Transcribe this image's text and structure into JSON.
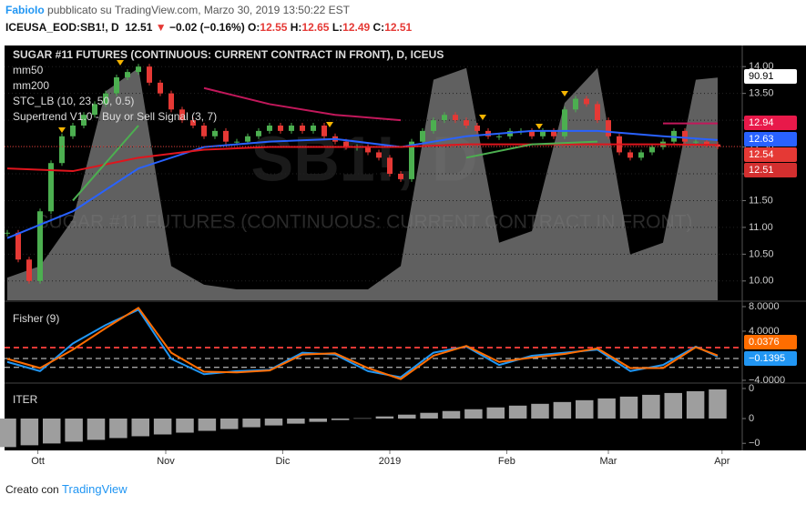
{
  "header": {
    "author": "FabioIo",
    "published": "pubblicato su TradingView.com, Marzo 30, 2019 13:50:22 EST",
    "symbol": "ICEUSA_EOD:SB1!, D",
    "last": "12.51",
    "arrow": "▼",
    "change": "−0.02 (−0.16%)",
    "ohlc": [
      {
        "label": "O:",
        "value": "12.55"
      },
      {
        "label": "H:",
        "value": "12.65"
      },
      {
        "label": "L:",
        "value": "12.49"
      },
      {
        "label": "C:",
        "value": "12.51"
      }
    ]
  },
  "footer": {
    "text": "Creato con",
    "brand": "TradingView"
  },
  "watermark": [
    "SB1!, D",
    "SUGAR #11 FUTURES (CONTINUOUS: CURRENT CONTRACT IN FRONT)"
  ],
  "chart_data": [
    {
      "type": "candlestick",
      "title": "SUGAR #11 FUTURES (CONTINUOUS: CURRENT CONTRACT IN FRONT), D, ICEUS",
      "xlim": [
        -0.25,
        67.25
      ],
      "xticks": [
        {
          "value": 2.8,
          "label": "Ott"
        },
        {
          "value": 14.5,
          "label": "Nov"
        },
        {
          "value": 25.2,
          "label": "Dic"
        },
        {
          "value": 35,
          "label": "2019"
        },
        {
          "value": 45.7,
          "label": "Feb"
        },
        {
          "value": 55,
          "label": "Mar"
        },
        {
          "value": 65.4,
          "label": "Apr"
        }
      ],
      "ylim": [
        9.64,
        14.36
      ],
      "yticks": [
        {
          "value": 10,
          "label": "10.00"
        },
        {
          "value": 10.5,
          "label": "10.50"
        },
        {
          "value": 11,
          "label": "11.00"
        },
        {
          "value": 11.5,
          "label": "11.50"
        },
        {
          "value": 12,
          "label": "12.00"
        },
        {
          "value": 12.5,
          "label": "12.50"
        },
        {
          "value": 13,
          "label": "13.00"
        },
        {
          "value": 13.5,
          "label": "13.50"
        },
        {
          "value": 14,
          "label": "14.00"
        }
      ],
      "y2lim": [
        -4.7,
        103.9
      ],
      "grid": true,
      "up_color": "#4caf50",
      "down_color": "#e53935",
      "series": [
        {
          "name": "close",
          "values": [
            10.9,
            10.4,
            10.0,
            11.3,
            12.2,
            12.7,
            12.9,
            13.1,
            13.3,
            13.5,
            13.8,
            13.9,
            14.0,
            13.7,
            13.5,
            13.2,
            13.0,
            12.9,
            12.7,
            12.8,
            12.6,
            12.6,
            12.7,
            12.8,
            12.9,
            12.8,
            12.9,
            12.8,
            12.9,
            12.7,
            12.6,
            12.5,
            12.5,
            12.4,
            12.3,
            12.0,
            11.9,
            12.6,
            12.8,
            13.0,
            13.1,
            13.0,
            12.9,
            12.8,
            12.7,
            12.7,
            12.8,
            12.8,
            12.7,
            12.8,
            12.7,
            13.2,
            13.4,
            13.3,
            13.0,
            12.7,
            12.4,
            12.3,
            12.4,
            12.5,
            12.6,
            12.8,
            12.6,
            12.6,
            12.55,
            12.51
          ]
        },
        {
          "name": "mm50",
          "type": "line",
          "color": "#2962ff",
          "x": [
            0,
            6,
            12,
            18,
            24,
            30,
            36,
            42,
            48,
            54,
            60,
            65
          ],
          "values": [
            10.8,
            11.3,
            12.1,
            12.5,
            12.6,
            12.65,
            12.5,
            12.7,
            12.8,
            12.8,
            12.7,
            12.63
          ]
        },
        {
          "name": "mm200",
          "type": "line",
          "color": "#e0151d",
          "x": [
            0,
            6,
            12,
            18,
            24,
            30,
            36,
            42,
            48,
            54,
            60,
            65
          ],
          "values": [
            12.1,
            12.05,
            12.3,
            12.45,
            12.5,
            12.5,
            12.5,
            12.55,
            12.55,
            12.55,
            12.55,
            12.54
          ]
        },
        {
          "name": "STC_LB (10, 23, 50, 0.5)",
          "type": "area",
          "axis": "y2",
          "color": "#808080",
          "x": [
            0,
            3,
            6,
            9,
            12,
            15,
            18,
            21,
            24,
            27,
            30,
            33,
            36,
            39,
            42,
            45,
            48,
            51,
            54,
            57,
            60,
            63,
            65
          ],
          "values": [
            5,
            10,
            30,
            85,
            95,
            10,
            2,
            0,
            0,
            0,
            0,
            0,
            10,
            90,
            95,
            20,
            25,
            80,
            95,
            15,
            20,
            90,
            90.91
          ]
        },
        {
          "name": "Supertrend V1.0 - Buy or Sell Signal (3, 7)",
          "type": "trend",
          "x": [
            0,
            6,
            12,
            18,
            24,
            30,
            36,
            42,
            48,
            54,
            60,
            65
          ],
          "values": [
            11.5,
            11.5,
            12.9,
            13.6,
            13.3,
            13.1,
            13.0,
            12.3,
            12.55,
            12.6,
            12.94,
            12.94
          ],
          "colors": [
            "#c2185b",
            "#4caf50",
            "#4caf50",
            "#c2185b",
            "#c2185b",
            "#c2185b",
            "#c2185b",
            "#4caf50",
            "#4caf50",
            "#4caf50",
            "#c2185b",
            "#c2185b"
          ]
        }
      ],
      "last_labels": [
        {
          "text": "90.91",
          "color": "#ffffff",
          "text_color": "#000000"
        },
        {
          "text": "12.94",
          "color": "#e8194a",
          "text_color": "#ffffff"
        },
        {
          "text": "12.63",
          "color": "#2962ff",
          "text_color": "#ffffff"
        },
        {
          "text": "12.54",
          "color": "#e53935",
          "text_color": "#ffffff"
        },
        {
          "text": "12.51",
          "color": "#d32f2f",
          "text_color": "#ffffff"
        }
      ]
    },
    {
      "type": "line",
      "title": "Fisher (9)",
      "xlim": [
        -0.25,
        67.25
      ],
      "ylim": [
        -4.3,
        8.59
      ],
      "yticks": [
        {
          "value": 8,
          "label": "8.0000"
        },
        {
          "value": 4,
          "label": "4.0000"
        },
        {
          "value": -4,
          "label": "−4.0000"
        }
      ],
      "levels": [
        {
          "value": 1.33,
          "color": "#e53935"
        },
        {
          "value": -0.44,
          "color": "#dddddd"
        },
        {
          "value": -1.9,
          "color": "#dddddd"
        }
      ],
      "series": [
        {
          "color": "#2196f3",
          "x": [
            0,
            3,
            6,
            9,
            12,
            15,
            18,
            21,
            24,
            27,
            30,
            33,
            36,
            39,
            42,
            45,
            48,
            51,
            54,
            57,
            60,
            63,
            65
          ],
          "values": [
            -1,
            -2.5,
            2,
            5,
            7.5,
            -0.5,
            -3,
            -2.5,
            -2.3,
            0.5,
            0.2,
            -2.5,
            -3.5,
            0.5,
            1.5,
            -1.5,
            0,
            0.5,
            1,
            -2.5,
            -1.5,
            1.5,
            -0.1395
          ]
        },
        {
          "color": "#ff6d00",
          "x": [
            0,
            3,
            6,
            9,
            12,
            15,
            18,
            21,
            24,
            27,
            30,
            33,
            36,
            39,
            42,
            45,
            48,
            51,
            54,
            57,
            60,
            63,
            65
          ],
          "values": [
            -0.5,
            -2,
            1,
            4.5,
            7.8,
            0.5,
            -2.6,
            -2.7,
            -2.4,
            0.2,
            0.4,
            -2,
            -3.8,
            0,
            1.6,
            -1,
            -0.3,
            0.3,
            1.2,
            -2,
            -2,
            1.4,
            0.0376
          ]
        }
      ],
      "last_labels": [
        {
          "text": "0.0376",
          "color": "#ff6d00",
          "text_color": "#ffffff"
        },
        {
          "text": "−0.1395",
          "color": "#2196f3",
          "text_color": "#ffffff"
        }
      ]
    },
    {
      "type": "bar",
      "title": "ITER",
      "ylim": [
        -0.004,
        0.00448
      ],
      "color": "#9e9e9e",
      "yticks": [
        {
          "value": 0.004,
          "label": "0"
        },
        {
          "value": 0,
          "label": "0"
        },
        {
          "value": -0.0033,
          "label": "−0"
        }
      ],
      "values": [
        -0.0038,
        -0.00356,
        -0.00332,
        -0.00308,
        -0.00284,
        -0.0026,
        -0.00236,
        -0.00212,
        -0.00188,
        -0.00164,
        -0.0014,
        -0.00116,
        -0.00092,
        -0.00068,
        -0.00044,
        -0.0002,
        4e-05,
        0.00028,
        0.00052,
        0.00076,
        0.001,
        0.00124,
        0.00148,
        0.00172,
        0.00196,
        0.0022,
        0.00244,
        0.00268,
        0.00292,
        0.00316,
        0.0034,
        0.00364,
        0.00388
      ]
    }
  ]
}
